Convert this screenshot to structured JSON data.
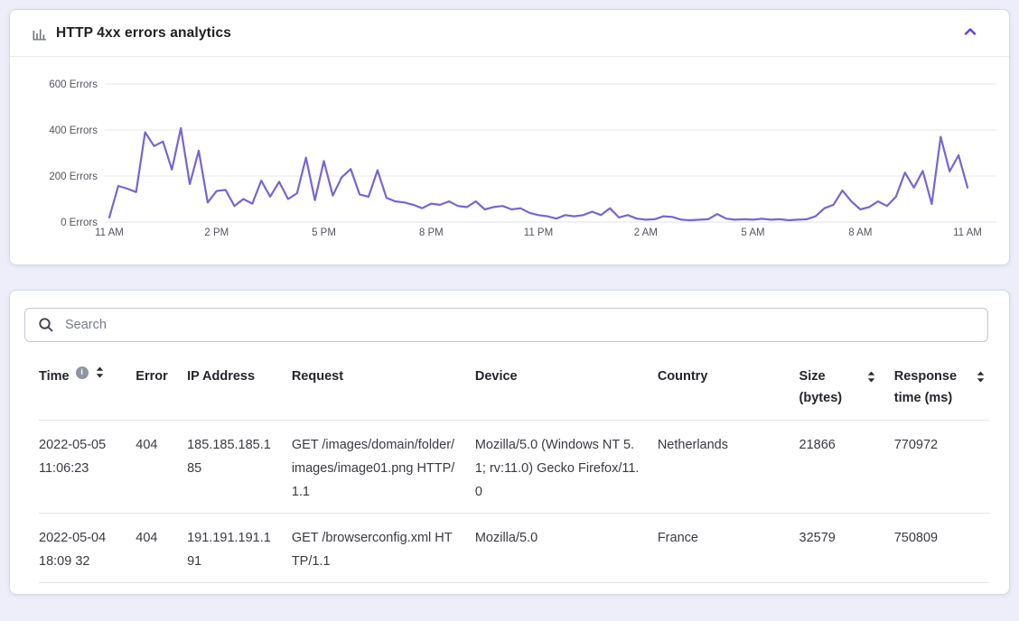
{
  "chart_card": {
    "title": "HTTP 4xx errors analytics"
  },
  "chart_data": {
    "type": "line",
    "title": "HTTP 4xx errors analytics",
    "x_axis": "time of day (24h window)",
    "xtick_labels": [
      "11 AM",
      "2 PM",
      "5 PM",
      "8 PM",
      "11 PM",
      "2 AM",
      "5 AM",
      "8 AM",
      "11 AM"
    ],
    "xtick_indices": [
      0,
      12,
      24,
      36,
      48,
      60,
      72,
      84,
      96
    ],
    "ytick_labels": [
      "0 Errors",
      "200 Errors",
      "400 Errors",
      "600 Errors"
    ],
    "yticks": [
      0,
      200,
      400,
      600
    ],
    "ylim": [
      0,
      600
    ],
    "grid": true,
    "legend": false,
    "line_color": "#7a64d0",
    "values": [
      20,
      157,
      145,
      130,
      390,
      330,
      350,
      228,
      408,
      165,
      310,
      85,
      135,
      140,
      70,
      100,
      80,
      180,
      110,
      175,
      100,
      125,
      280,
      95,
      265,
      115,
      195,
      230,
      120,
      110,
      225,
      105,
      90,
      85,
      75,
      60,
      80,
      75,
      90,
      70,
      65,
      90,
      55,
      65,
      70,
      55,
      60,
      40,
      30,
      25,
      15,
      30,
      25,
      30,
      45,
      30,
      60,
      20,
      30,
      15,
      10,
      12,
      25,
      22,
      10,
      8,
      10,
      12,
      35,
      15,
      10,
      12,
      10,
      14,
      10,
      12,
      8,
      10,
      12,
      25,
      60,
      75,
      137,
      90,
      55,
      65,
      90,
      70,
      110,
      215,
      150,
      222,
      78,
      370,
      220,
      290,
      150
    ]
  },
  "table": {
    "search_placeholder": "Search",
    "columns": [
      {
        "label": "Time",
        "has_info": true,
        "has_sort": true
      },
      {
        "label": "Error"
      },
      {
        "label": "IP Address"
      },
      {
        "label": "Request"
      },
      {
        "label": "Device"
      },
      {
        "label": "Country"
      },
      {
        "label": "Size",
        "label2": "(bytes)",
        "has_sort": true
      },
      {
        "label": "Response",
        "label2": "time (ms)",
        "has_sort": true
      }
    ],
    "rows": [
      {
        "time": "2022-05-05 11:06:23",
        "error": "404",
        "ip": "185.185.185.185",
        "request": "GET /images/domain/folder/images/image01.png HTTP/1.1",
        "device": "Mozilla/5.0 (Windows NT 5.1; rv:11.0) Gecko Firefox/11.0",
        "country": "Netherlands",
        "size": "21866",
        "response_time": "770972"
      },
      {
        "time": "2022-05-04 18:09 32",
        "error": "404",
        "ip": "191.191.191.191",
        "request": "GET /browserconfig.xml HTTP/1.1",
        "device": "Mozilla/5.0",
        "country": "France",
        "size": "32579",
        "response_time": "750809"
      }
    ]
  },
  "icons": {
    "header": "bar-chart-icon",
    "collapse": "chevron-up-icon",
    "search": "search-icon",
    "time_info": "info-icon",
    "sort": "sort-icon"
  },
  "colors": {
    "accent": "#673de6",
    "chart_line": "#7a64d0",
    "page_bg": "#edeefa",
    "card_bg": "#ffffff"
  }
}
